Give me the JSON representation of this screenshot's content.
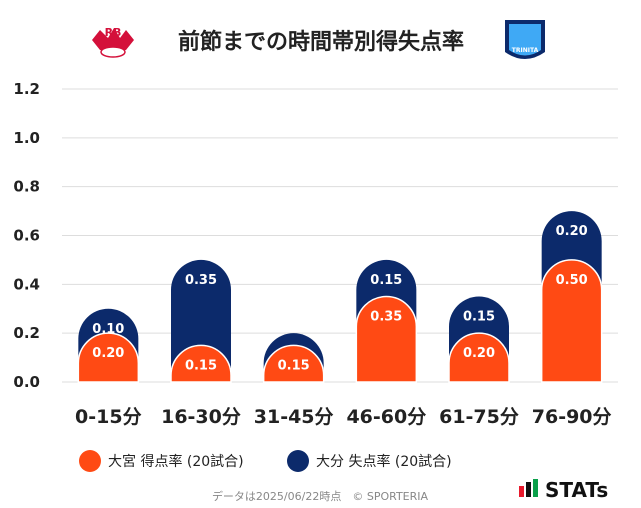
{
  "header": {
    "title": "前節までの時間帯別得失点率",
    "home_logo_text": "RB",
    "away_logo_text": "TRINITA"
  },
  "colors": {
    "home": "#ff4a14",
    "away": "#0c2a6b",
    "grid": "#dddddd"
  },
  "chart_data": {
    "type": "bar",
    "stacked": true,
    "categories": [
      "0-15分",
      "16-30分",
      "31-45分",
      "46-60分",
      "61-75分",
      "76-90分"
    ],
    "series": [
      {
        "name": "大宮 得点率 (20試合)",
        "values": [
          0.2,
          0.15,
          0.15,
          0.35,
          0.2,
          0.5
        ],
        "labels": [
          "0.20",
          "0.15",
          "0.15",
          "0.35",
          "0.20",
          "0.50"
        ]
      },
      {
        "name": "大分 失点率 (20試合)",
        "values": [
          0.1,
          0.35,
          0.05,
          0.15,
          0.15,
          0.2
        ],
        "labels": [
          "0.10",
          "0.35",
          "",
          "0.15",
          "0.15",
          "0.20"
        ]
      }
    ],
    "yticks": [
      "0.0",
      "0.2",
      "0.4",
      "0.6",
      "0.8",
      "1.0",
      "1.2"
    ],
    "ylim": [
      0,
      1.2
    ],
    "grid": true,
    "legend_position": "bottom-left"
  },
  "footer": {
    "note": "データは2025/06/22時点　© SPORTERIA",
    "brand": "STATs"
  }
}
